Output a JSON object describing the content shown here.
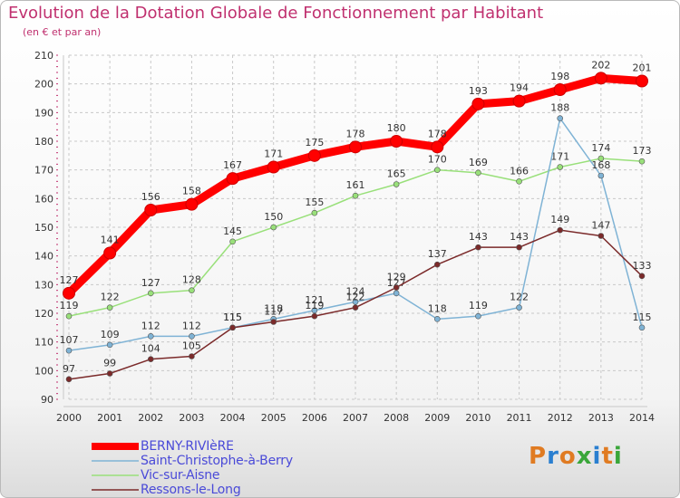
{
  "title": "Evolution de la Dotation Globale de Fonctionnement par Habitant",
  "subtitle": "(en € et par an)",
  "logo_text": "Proxiti",
  "logo_colors": [
    "#e07b22",
    "#2a7fd0",
    "#e07b22",
    "#3aa63a",
    "#2a7fd0",
    "#e07b22",
    "#3aa63a"
  ],
  "chart_data": {
    "type": "line",
    "title": "Evolution de la Dotation Globale de Fonctionnement par Habitant",
    "subtitle": "(en € et par an)",
    "xlabel": "",
    "ylabel": "",
    "x": [
      "2000",
      "2001",
      "2002",
      "2003",
      "2004",
      "2005",
      "2006",
      "2007",
      "2008",
      "2009",
      "2010",
      "2011",
      "2012",
      "2013",
      "2014"
    ],
    "ylim": [
      90,
      210
    ],
    "yticks": [
      "90",
      "100",
      "110",
      "120",
      "130",
      "140",
      "150",
      "160",
      "170",
      "180",
      "190",
      "200",
      "210"
    ],
    "grid": true,
    "legend_position": "bottom-left",
    "series": [
      {
        "name": "BERNY-RIVIèRE",
        "color": "#ff0000",
        "values": [
          127,
          141,
          156,
          158,
          167,
          171,
          175,
          178,
          180,
          178,
          193,
          194,
          198,
          202,
          201
        ]
      },
      {
        "name": "Saint-Christophe-à-Berry",
        "color": "#7fb3d5",
        "values": [
          107,
          109,
          112,
          112,
          115,
          118,
          121,
          124,
          127,
          118,
          119,
          122,
          188,
          168,
          115
        ]
      },
      {
        "name": "Vic-sur-Aisne",
        "color": "#99e07a",
        "values": [
          119,
          122,
          127,
          128,
          145,
          150,
          155,
          161,
          165,
          170,
          169,
          166,
          171,
          174,
          173
        ]
      },
      {
        "name": "Ressons-le-Long",
        "color": "#7b2a2a",
        "values": [
          97,
          99,
          104,
          105,
          115,
          117,
          119,
          122,
          129,
          137,
          143,
          143,
          149,
          147,
          133
        ]
      }
    ]
  }
}
